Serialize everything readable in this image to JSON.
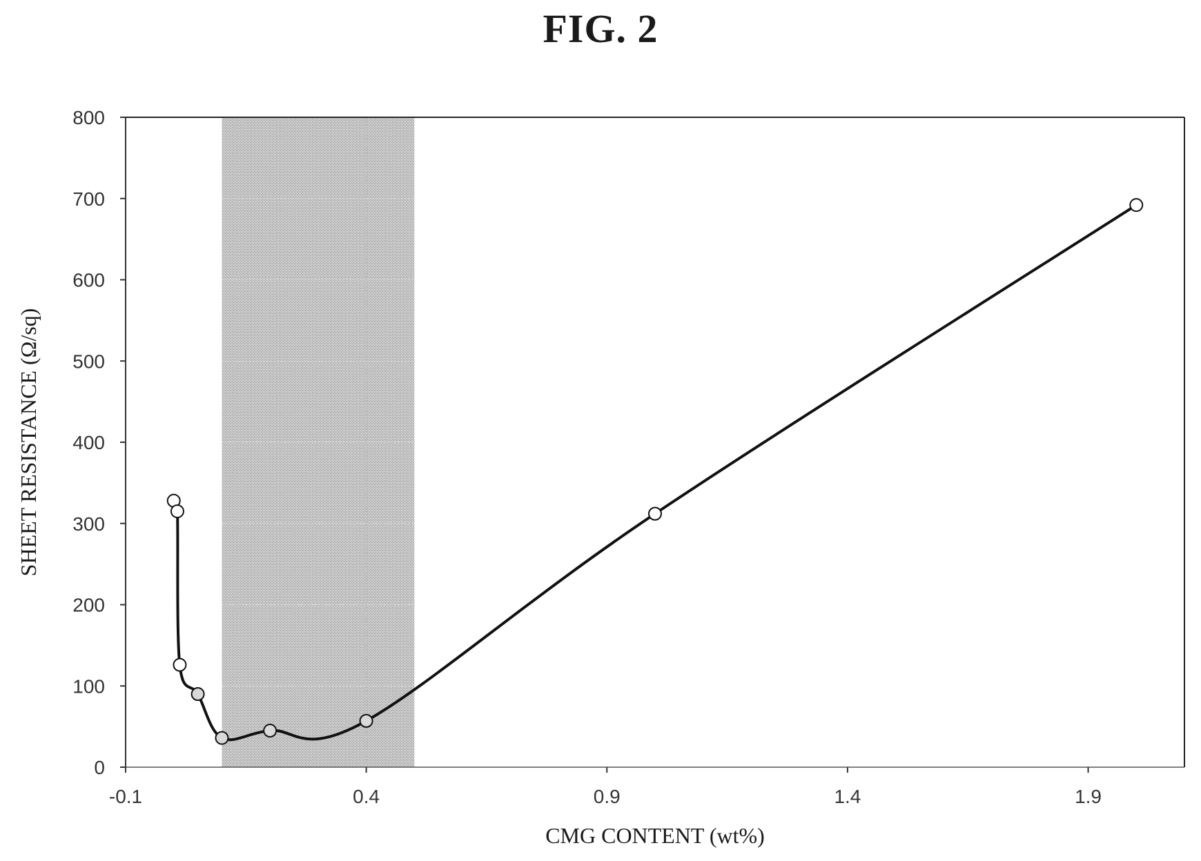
{
  "figure": {
    "title": "FIG. 2"
  },
  "chart_data": {
    "type": "line",
    "title": "",
    "xlabel": "CMG CONTENT (wt%)",
    "ylabel": "SHEET RESISTANCE (Ω/sq)",
    "xlim": [
      -0.1,
      2.1
    ],
    "ylim": [
      0,
      800
    ],
    "x_ticks": [
      -0.1,
      0.4,
      0.9,
      1.4,
      1.9
    ],
    "x_tick_labels": [
      "-0.1",
      "0.4",
      "0.9",
      "1.4",
      "1.9"
    ],
    "y_ticks": [
      0,
      100,
      200,
      300,
      400,
      500,
      600,
      700,
      800
    ],
    "y_tick_labels": [
      "0",
      "100",
      "200",
      "300",
      "400",
      "500",
      "600",
      "700",
      "800"
    ],
    "grid": false,
    "legend": "none",
    "highlight_region": {
      "x_start": 0.1,
      "x_end": 0.5,
      "color": "#bdbdbd"
    },
    "series": [
      {
        "x": [
          0.0,
          0.0075,
          0.0125,
          0.05,
          0.1,
          0.2,
          0.4,
          1.0,
          2.0
        ],
        "y": [
          328,
          315,
          126,
          90,
          36,
          45,
          57,
          312,
          692
        ],
        "open_markers": [
          true,
          true,
          true,
          false,
          false,
          false,
          false,
          true,
          true
        ],
        "line_color": "#111111",
        "marker_fill_open": "#ffffff",
        "marker_fill_shaded": "#d9d9d9"
      }
    ]
  }
}
